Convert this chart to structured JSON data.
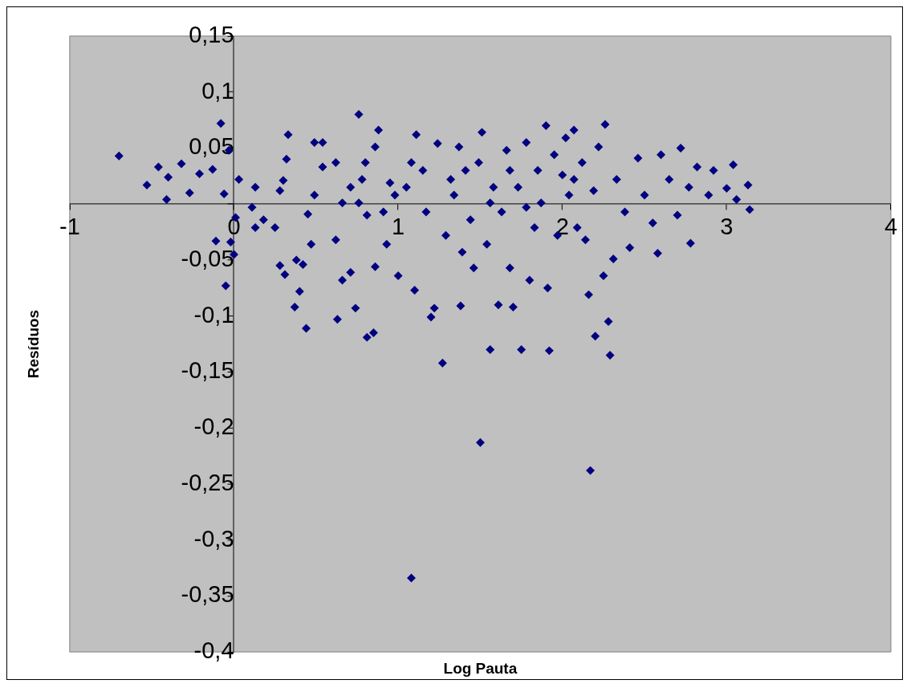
{
  "chart_data": {
    "type": "scatter",
    "xlabel": "Log Pauta",
    "ylabel": "Resíduos",
    "marker": "diamond",
    "xlim": [
      -1,
      4
    ],
    "xticks": [
      -1,
      0,
      1,
      2,
      3,
      4
    ],
    "ylim": [
      -0.4,
      0.15
    ],
    "yticks": [
      {
        "value": 0.15,
        "label": "0,15"
      },
      {
        "value": 0.1,
        "label": "0,1"
      },
      {
        "value": 0.05,
        "label": "0,05"
      },
      {
        "value": 0,
        "label": null
      },
      {
        "value": -0.05,
        "label": "-0,05"
      },
      {
        "value": -0.1,
        "label": "-0,1"
      },
      {
        "value": -0.15,
        "label": "-0,15"
      },
      {
        "value": -0.2,
        "label": "-0,2"
      },
      {
        "value": -0.25,
        "label": "-0,25"
      },
      {
        "value": -0.3,
        "label": "-0,3"
      },
      {
        "value": -0.35,
        "label": "-0,35"
      },
      {
        "value": -0.4,
        "label": "-0,4"
      }
    ],
    "series": [
      {
        "color": "#000080",
        "x": [
          -0.7,
          -0.53,
          -0.46,
          -0.41,
          -0.4,
          -0.32,
          -0.27,
          -0.21,
          -0.13,
          -0.08,
          -0.06,
          -0.11,
          -0.05,
          -0.03,
          -0.02,
          0.0,
          0.01,
          0.03,
          0.11,
          0.13,
          0.18,
          0.25,
          0.28,
          0.3,
          0.32,
          0.28,
          0.31,
          0.37,
          0.4,
          0.44,
          0.42,
          0.33,
          0.38,
          0.45,
          0.49,
          0.54,
          0.54,
          0.62,
          0.63,
          0.66,
          0.71,
          0.74,
          0.76,
          0.78,
          0.76,
          0.8,
          0.81,
          0.85,
          0.86,
          0.88,
          0.91,
          0.93,
          0.95,
          0.98,
          1.0,
          0.86,
          1.1,
          1.11,
          1.08,
          1.15,
          1.17,
          1.2,
          1.22,
          1.24,
          1.27,
          1.29,
          1.32,
          1.34,
          1.37,
          1.38,
          1.39,
          1.44,
          1.46,
          1.49,
          1.5,
          1.51,
          1.54,
          1.56,
          1.58,
          1.61,
          1.63,
          1.66,
          1.68,
          1.7,
          1.73,
          1.75,
          1.78,
          1.8,
          1.83,
          1.85,
          1.87,
          1.9,
          1.91,
          1.92,
          1.95,
          1.97,
          2.0,
          2.02,
          2.04,
          2.07,
          2.09,
          2.12,
          2.14,
          2.16,
          2.17,
          2.2,
          2.22,
          2.25,
          2.26,
          2.28,
          2.29,
          2.31,
          2.33,
          2.38,
          2.41,
          2.46,
          2.5,
          2.55,
          2.58,
          2.6,
          2.65,
          2.7,
          2.72,
          2.77,
          2.78,
          2.82,
          2.89,
          2.92,
          3.0,
          3.04,
          3.06,
          3.13,
          3.14,
          0.62,
          0.66,
          0.71,
          0.81,
          1.05,
          1.08,
          1.41,
          1.56,
          1.68,
          1.78,
          2.07,
          2.19,
          0.13,
          0.47,
          0.49
        ],
        "values": [
          0.043,
          0.017,
          0.033,
          0.004,
          0.024,
          0.036,
          0.01,
          0.027,
          0.031,
          0.072,
          0.009,
          -0.033,
          -0.073,
          0.048,
          -0.034,
          -0.045,
          -0.012,
          0.022,
          -0.003,
          0.015,
          -0.014,
          -0.021,
          0.012,
          0.021,
          0.04,
          -0.055,
          -0.063,
          -0.092,
          -0.078,
          -0.111,
          -0.054,
          0.062,
          -0.05,
          -0.009,
          0.008,
          0.033,
          0.055,
          -0.032,
          -0.103,
          -0.068,
          -0.061,
          -0.093,
          0.001,
          0.022,
          0.08,
          0.037,
          -0.119,
          -0.115,
          0.051,
          0.066,
          -0.007,
          -0.036,
          0.019,
          0.008,
          -0.064,
          -0.056,
          -0.077,
          0.062,
          -0.334,
          0.03,
          -0.007,
          -0.101,
          -0.093,
          0.054,
          -0.142,
          -0.028,
          0.022,
          0.008,
          0.051,
          -0.091,
          -0.043,
          -0.014,
          -0.057,
          0.037,
          -0.213,
          0.064,
          -0.036,
          -0.13,
          0.015,
          -0.09,
          -0.007,
          0.048,
          -0.057,
          -0.092,
          0.015,
          -0.13,
          0.055,
          -0.068,
          -0.021,
          0.03,
          0.001,
          0.07,
          -0.075,
          -0.131,
          0.044,
          -0.028,
          0.026,
          0.059,
          0.008,
          0.066,
          -0.021,
          0.037,
          -0.032,
          -0.081,
          -0.238,
          -0.118,
          0.051,
          -0.064,
          0.071,
          -0.105,
          -0.135,
          -0.049,
          0.022,
          -0.007,
          -0.039,
          0.041,
          0.008,
          -0.017,
          -0.044,
          0.044,
          0.022,
          -0.01,
          0.05,
          0.015,
          -0.035,
          0.033,
          0.008,
          0.03,
          0.014,
          0.035,
          0.004,
          0.017,
          -0.005,
          0.037,
          0.001,
          0.015,
          -0.01,
          0.015,
          0.037,
          0.03,
          0.001,
          0.03,
          -0.003,
          0.022,
          0.012,
          -0.021,
          -0.036,
          0.055
        ]
      }
    ]
  }
}
